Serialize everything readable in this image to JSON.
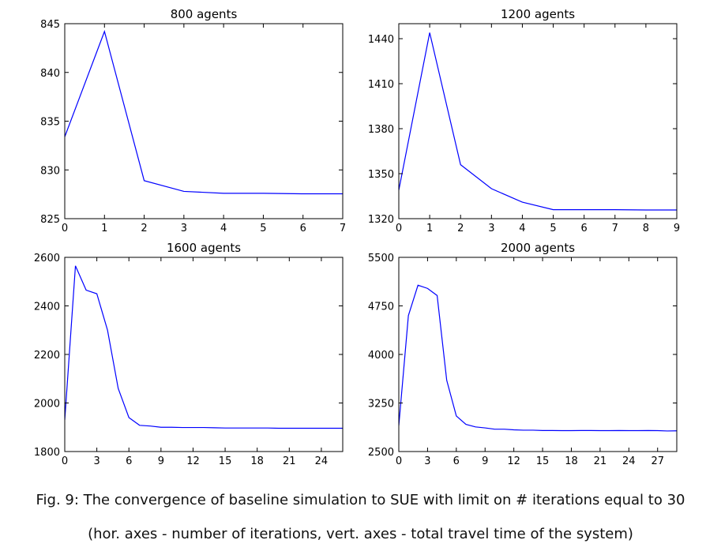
{
  "caption": {
    "line1": "Fig. 9: The convergence of baseline simulation to SUE with limit on # iterations equal to 30",
    "line2": "(hor. axes - number of iterations, vert. axes - total travel time of the system)"
  },
  "colors": {
    "line": "#0000ff",
    "axes": "#000000",
    "background": "#ffffff"
  },
  "chart_data": [
    {
      "type": "line",
      "title": "800 agents",
      "xlim": [
        0,
        7
      ],
      "ylim": [
        825,
        845
      ],
      "xticks": [
        0,
        1,
        2,
        3,
        4,
        5,
        6,
        7
      ],
      "yticks": [
        825,
        830,
        835,
        840,
        845
      ],
      "grid": false,
      "series": [
        {
          "x": [
            0,
            1,
            2,
            3,
            4,
            5,
            6,
            7
          ],
          "y": [
            833.4,
            844.2,
            828.9,
            827.8,
            827.6,
            827.6,
            827.55,
            827.55
          ]
        }
      ]
    },
    {
      "type": "line",
      "title": "1200 agents",
      "xlim": [
        0,
        9
      ],
      "ylim": [
        1320,
        1450
      ],
      "xticks": [
        0,
        1,
        2,
        3,
        4,
        5,
        6,
        7,
        8,
        9
      ],
      "yticks": [
        1320,
        1350,
        1380,
        1410,
        1440
      ],
      "grid": false,
      "series": [
        {
          "x": [
            0,
            1,
            2,
            3,
            4,
            5,
            6,
            7,
            8,
            9
          ],
          "y": [
            1339,
            1444,
            1356,
            1340,
            1331,
            1326,
            1326,
            1326,
            1325.8,
            1325.8
          ]
        }
      ]
    },
    {
      "type": "line",
      "title": "1600 agents",
      "xlim": [
        0,
        26
      ],
      "ylim": [
        1800,
        2600
      ],
      "xticks": [
        0,
        3,
        6,
        9,
        12,
        15,
        18,
        21,
        24
      ],
      "yticks": [
        1800,
        2000,
        2200,
        2400,
        2600
      ],
      "grid": false,
      "series": [
        {
          "x": [
            0,
            1,
            2,
            3,
            4,
            5,
            6,
            7,
            8,
            9,
            10,
            11,
            12,
            13,
            14,
            15,
            16,
            17,
            18,
            19,
            20,
            21,
            22,
            23,
            24,
            25,
            26
          ],
          "y": [
            1930,
            2565,
            2465,
            2450,
            2300,
            2060,
            1940,
            1908,
            1905,
            1900,
            1900,
            1899,
            1899,
            1899,
            1898,
            1897,
            1897,
            1897,
            1897,
            1897,
            1896,
            1896,
            1896,
            1896,
            1896,
            1896,
            1896
          ]
        }
      ]
    },
    {
      "type": "line",
      "title": "2000 agents",
      "xlim": [
        0,
        29
      ],
      "ylim": [
        2500,
        5500
      ],
      "xticks": [
        0,
        3,
        6,
        9,
        12,
        15,
        18,
        21,
        24,
        27
      ],
      "yticks": [
        2500,
        3250,
        4000,
        4750,
        5500
      ],
      "grid": false,
      "series": [
        {
          "x": [
            0,
            1,
            2,
            3,
            4,
            5,
            6,
            7,
            8,
            9,
            10,
            11,
            12,
            13,
            14,
            15,
            16,
            17,
            18,
            19,
            20,
            21,
            22,
            23,
            24,
            25,
            26,
            27,
            28,
            29
          ],
          "y": [
            2900,
            4600,
            5070,
            5020,
            4910,
            3600,
            3050,
            2920,
            2880,
            2865,
            2845,
            2845,
            2835,
            2830,
            2830,
            2825,
            2825,
            2823,
            2823,
            2825,
            2825,
            2823,
            2823,
            2825,
            2823,
            2823,
            2825,
            2823,
            2818,
            2820
          ]
        }
      ]
    }
  ]
}
